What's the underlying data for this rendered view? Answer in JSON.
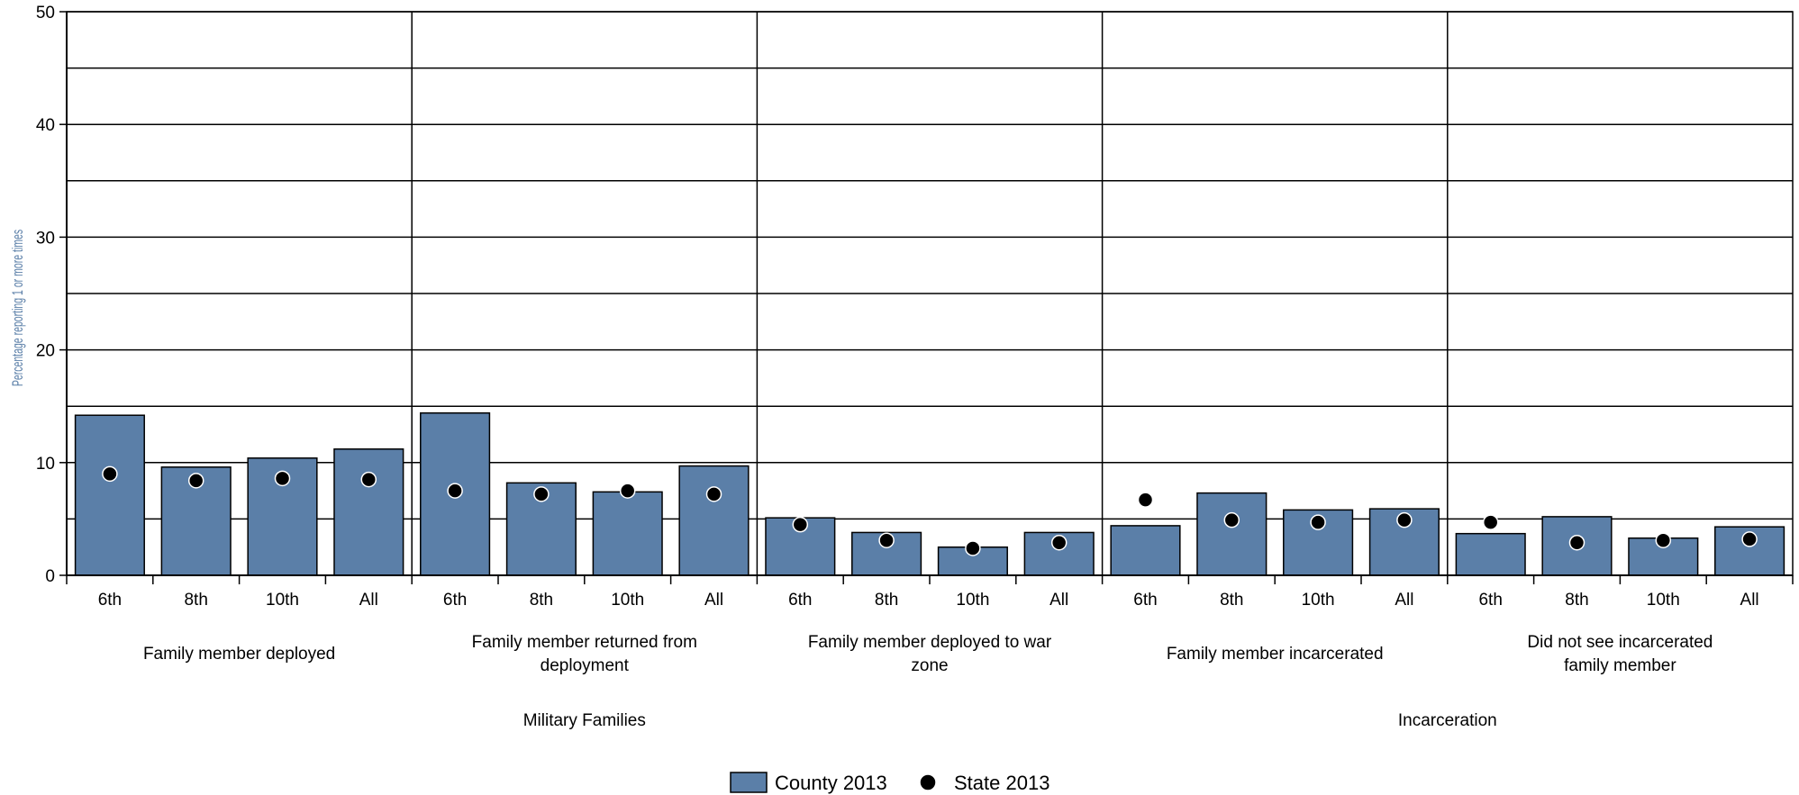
{
  "chart_data": {
    "type": "bar",
    "ylabel": "Percentage reporting 1 or more times",
    "ylim": [
      0,
      50
    ],
    "yticks": [
      0,
      10,
      20,
      30,
      40,
      50
    ],
    "y_gridlines": [
      5,
      10,
      15,
      20,
      25,
      30,
      35,
      40,
      45,
      50
    ],
    "grid": true,
    "categories": [
      "6th",
      "8th",
      "10th",
      "All"
    ],
    "groups": [
      "Family member deployed",
      "Family member returned from deployment",
      "Family member deployed to war zone",
      "Family member incarcerated",
      "Did not see incarcerated family member"
    ],
    "supergroups": [
      {
        "label": "Military Families",
        "groups": [
          0,
          1,
          2
        ]
      },
      {
        "label": "Incarceration",
        "groups": [
          3,
          4
        ]
      }
    ],
    "series": [
      {
        "name": "County 2013",
        "mark": "bar",
        "color": "#5b7fa8",
        "values": [
          [
            14.2,
            9.6,
            10.4,
            11.2
          ],
          [
            14.4,
            8.2,
            7.4,
            9.7
          ],
          [
            5.1,
            3.8,
            2.5,
            3.8
          ],
          [
            4.4,
            7.3,
            5.8,
            5.9
          ],
          [
            3.7,
            5.2,
            3.3,
            4.3
          ]
        ]
      },
      {
        "name": "State 2013",
        "mark": "dot",
        "color": "#000000",
        "values": [
          [
            9.0,
            8.4,
            8.6,
            8.5
          ],
          [
            7.5,
            7.2,
            7.5,
            7.2
          ],
          [
            4.5,
            3.1,
            2.4,
            2.9
          ],
          [
            6.7,
            4.9,
            4.7,
            4.9
          ],
          [
            4.7,
            2.9,
            3.1,
            3.2
          ]
        ]
      }
    ],
    "legend": {
      "position": "bottom"
    }
  }
}
